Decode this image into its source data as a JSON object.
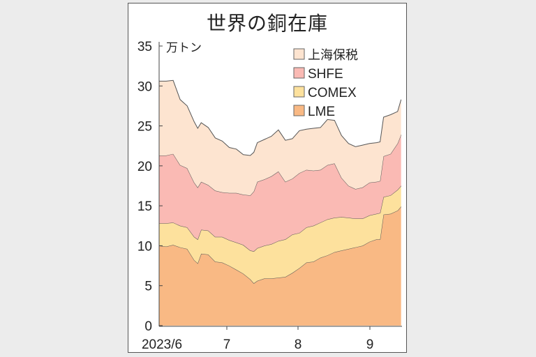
{
  "chart_data": {
    "type": "area",
    "stacked": true,
    "title": "世界の銅在庫",
    "ylabel": "万トン",
    "xlabel": "",
    "ylim": [
      0,
      35
    ],
    "yticks": [
      0,
      5,
      10,
      15,
      20,
      25,
      30,
      35
    ],
    "xtick_labels": [
      "2023/6",
      "7",
      "8",
      "9"
    ],
    "grid": false,
    "legend_position": "upper right",
    "legend": [
      "上海保税",
      "SHFE",
      "COMEX",
      "LME"
    ],
    "colors": {
      "上海保税": "#fde4d0",
      "SHFE": "#fabab4",
      "COMEX": "#fde19d",
      "LME": "#f9b984"
    },
    "x": [
      0,
      0.1,
      0.2,
      0.3,
      0.4,
      0.5,
      0.55,
      0.6,
      0.7,
      0.8,
      0.9,
      1.0,
      1.1,
      1.2,
      1.3,
      1.35,
      1.4,
      1.5,
      1.6,
      1.7,
      1.8,
      1.9,
      2.0,
      2.1,
      2.2,
      2.3,
      2.4,
      2.5,
      2.6,
      2.7,
      2.8,
      2.9,
      3.0,
      3.1,
      3.15,
      3.2,
      3.3,
      3.4,
      3.45
    ],
    "series": [
      {
        "name": "LME",
        "values": [
          10.0,
          9.9,
          10.1,
          9.8,
          9.6,
          8.2,
          7.8,
          9.0,
          8.9,
          8.0,
          7.9,
          7.5,
          7.0,
          6.5,
          5.8,
          5.3,
          5.6,
          5.9,
          5.9,
          6.0,
          6.1,
          6.6,
          7.2,
          7.9,
          8.0,
          8.5,
          8.8,
          9.2,
          9.4,
          9.6,
          9.8,
          10.0,
          10.5,
          10.8,
          10.8,
          13.9,
          14.0,
          14.4,
          14.9
        ]
      },
      {
        "name": "COMEX",
        "values": [
          2.8,
          2.9,
          2.8,
          2.7,
          2.7,
          2.9,
          3.0,
          3.0,
          3.0,
          3.1,
          3.2,
          3.2,
          3.4,
          3.6,
          3.6,
          4.0,
          4.1,
          4.1,
          4.3,
          4.6,
          4.7,
          4.8,
          4.4,
          4.4,
          4.5,
          4.4,
          4.5,
          4.3,
          4.2,
          3.9,
          3.6,
          3.4,
          3.3,
          3.2,
          3.3,
          2.2,
          2.3,
          2.6,
          2.6
        ]
      },
      {
        "name": "SHFE",
        "values": [
          8.5,
          8.5,
          8.6,
          7.6,
          7.4,
          6.8,
          6.5,
          6.0,
          5.7,
          5.8,
          5.6,
          5.9,
          6.2,
          6.3,
          6.9,
          7.5,
          8.3,
          8.3,
          8.5,
          8.7,
          7.2,
          7.0,
          7.5,
          7.2,
          6.9,
          6.6,
          6.8,
          6.8,
          4.9,
          4.0,
          3.7,
          3.9,
          4.1,
          4.0,
          4.0,
          5.1,
          5.2,
          5.8,
          6.4
        ]
      },
      {
        "name": "上海保税",
        "values": [
          9.3,
          9.3,
          9.2,
          8.2,
          7.8,
          7.6,
          7.4,
          7.4,
          7.2,
          6.6,
          6.4,
          5.7,
          5.5,
          5.0,
          5.0,
          4.9,
          4.9,
          5.0,
          5.0,
          5.2,
          5.2,
          5.0,
          5.3,
          5.1,
          5.3,
          5.3,
          5.7,
          5.4,
          5.3,
          5.3,
          5.3,
          5.3,
          4.9,
          4.9,
          4.9,
          4.9,
          4.9,
          4.0,
          4.4
        ]
      }
    ]
  },
  "title": "世界の銅在庫",
  "unit_label": "万トン",
  "y_axis": [
    "0",
    "5",
    "10",
    "15",
    "20",
    "25",
    "30",
    "35"
  ],
  "x_axis": [
    "2023/6",
    "7",
    "8",
    "9"
  ],
  "legend": [
    {
      "label": "上海保税",
      "color": "#fde4d0"
    },
    {
      "label": "SHFE",
      "color": "#fabab4"
    },
    {
      "label": "COMEX",
      "color": "#fde19d"
    },
    {
      "label": "LME",
      "color": "#f9b984"
    }
  ]
}
